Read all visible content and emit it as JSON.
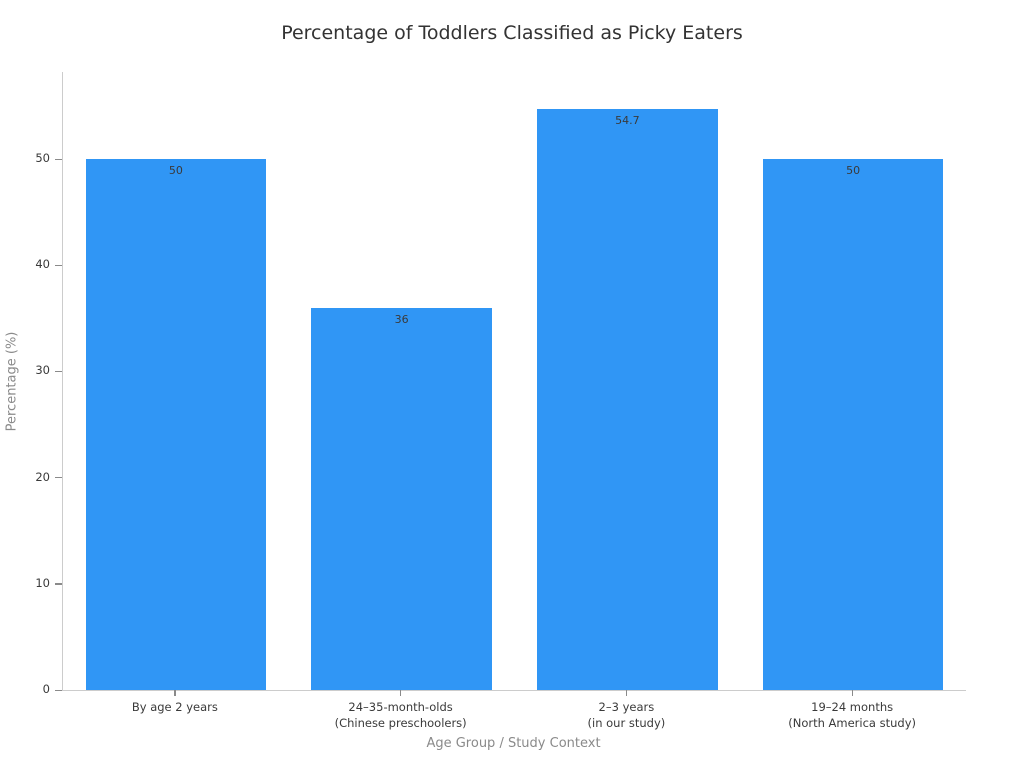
{
  "chart_data": {
    "type": "bar",
    "title": "Percentage of Toddlers Classified as Picky Eaters",
    "xlabel": "Age Group / Study Context",
    "ylabel": "Percentage (%)",
    "categories": [
      [
        "By age 2 years"
      ],
      [
        "24–35-month-olds",
        "(Chinese preschoolers)"
      ],
      [
        "2–3 years",
        "(in our study)"
      ],
      [
        "19–24 months",
        "(North America study)"
      ]
    ],
    "values": [
      50,
      36,
      54.7,
      50
    ],
    "value_labels": [
      "50",
      "36",
      "54.7",
      "50"
    ],
    "yticks": [
      0,
      10,
      20,
      30,
      40,
      50
    ],
    "ylim": [
      0,
      58.2
    ],
    "grid": false,
    "legend": false,
    "bar_color": "#3096f5",
    "label_color": "#3a3a3a"
  }
}
